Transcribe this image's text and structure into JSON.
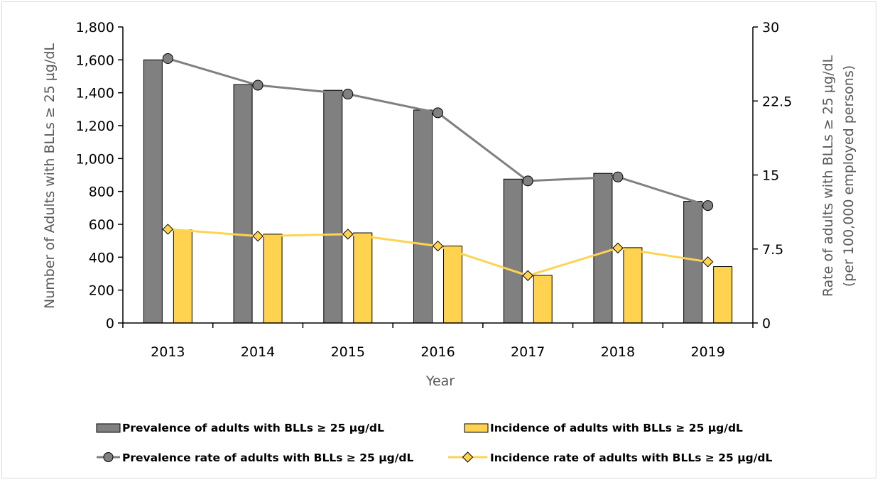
{
  "chart_data": {
    "type": "bar+line",
    "categories": [
      "2013",
      "2014",
      "2015",
      "2016",
      "2017",
      "2018",
      "2019"
    ],
    "xlabel": "Year",
    "ylabel_left": "Number of Adults with BLLs ≥ 25 µg/dL",
    "ylabel_right_line1": "Rate of adults with BLLs ≥ 25 µg/dL",
    "ylabel_right_line2": "(per 100,000 employed persons)",
    "ylim_left": [
      0,
      1800
    ],
    "ylim_right": [
      0,
      30
    ],
    "yticks_left": [
      0,
      200,
      400,
      600,
      800,
      1000,
      1200,
      1400,
      1600,
      1800
    ],
    "yticks_left_labels": [
      "0",
      "200",
      "400",
      "600",
      "800",
      "1,000",
      "1,200",
      "1,400",
      "1,600",
      "1,800"
    ],
    "yticks_right": [
      0,
      7.5,
      15,
      22.5,
      30
    ],
    "yticks_right_labels": [
      "0",
      "7.5",
      "15",
      "22.5",
      "30"
    ],
    "grid": false,
    "legend_position": "bottom",
    "bar_series": [
      {
        "name": "Prevalence of adults with BLLs ≥ 25 µg/dL",
        "color": "#808080",
        "values": [
          1600,
          1450,
          1415,
          1295,
          875,
          910,
          740
        ]
      },
      {
        "name": "Incidence of adults with BLLs ≥ 25 µg/dL",
        "color": "#ffd34f",
        "values": [
          565,
          540,
          548,
          468,
          290,
          458,
          343
        ]
      }
    ],
    "line_series": [
      {
        "name": "Prevalence rate of adults with BLLs ≥ 25 µg/dL",
        "color": "#808080",
        "marker": "circle",
        "values": [
          26.8,
          24.1,
          23.2,
          21.3,
          14.4,
          14.8,
          11.9
        ]
      },
      {
        "name": "Incidence rate of adults with BLLs ≥ 25 µg/dL",
        "color": "#ffd34f",
        "marker": "diamond",
        "values": [
          9.5,
          8.8,
          9.0,
          7.8,
          4.8,
          7.6,
          6.2
        ]
      }
    ]
  }
}
